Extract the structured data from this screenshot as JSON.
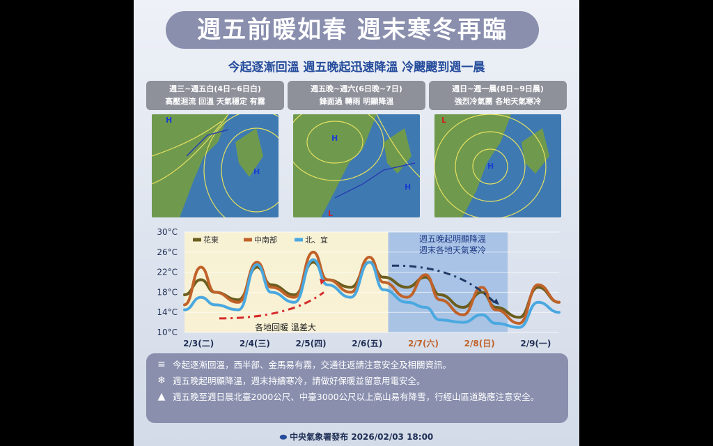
{
  "title": "週五前暖如春  週末寒冬再臨",
  "subtitle": "今起逐漸回溫 週五晚起迅速降溫 冷颼颼到週一晨",
  "panels": [
    {
      "line1": "週三~週五白(4日~6日白)",
      "line2": "高壓迴流 回溫 天氣穩定 有霧"
    },
    {
      "line1": "週五晚~週六(6日晚~7日)",
      "line2": "鋒面過 轉雨 明顯降溫"
    },
    {
      "line1": "週日~週一晨(8日~9日晨)",
      "line2": "強烈冷氣團 各地天氣寒冷"
    }
  ],
  "chart_data": {
    "type": "line",
    "ylim": [
      10,
      30
    ],
    "yticks": [
      "10°C",
      "14°C",
      "18°C",
      "22°C",
      "26°C",
      "30°C"
    ],
    "ytick_values": [
      10,
      14,
      18,
      22,
      26,
      30
    ],
    "xlim": [
      "2/3 06:00",
      "2/9 22:00"
    ],
    "xticks": [
      {
        "label": "2/3(二)",
        "color": "#1f2f55"
      },
      {
        "label": "2/4(三)",
        "color": "#1f2f55"
      },
      {
        "label": "2/5(四)",
        "color": "#1f2f55"
      },
      {
        "label": "2/6(五)",
        "color": "#1f2f55"
      },
      {
        "label": "2/7(六)",
        "color": "#c0622a"
      },
      {
        "label": "2/8(日)",
        "color": "#c0622a"
      },
      {
        "label": "2/9(一)",
        "color": "#1f2f55"
      }
    ],
    "x": [
      "2/3 06:00",
      "2/3 13:00",
      "2/3 19:00",
      "2/4 05:00",
      "2/4 13:00",
      "2/4 19:00",
      "2/5 05:00",
      "2/5 13:00",
      "2/5 19:00",
      "2/6 05:00",
      "2/6 13:00",
      "2/6 19:00",
      "2/7 05:00",
      "2/7 13:00",
      "2/7 19:00",
      "2/8 05:00",
      "2/8 13:00",
      "2/8 19:00",
      "2/9 05:00",
      "2/9 13:00",
      "2/9 22:00"
    ],
    "series": [
      {
        "name": "花東",
        "color": "#6b5e1e",
        "values": [
          17.5,
          20.5,
          18,
          16.5,
          23,
          19.5,
          17.5,
          24,
          20.5,
          19,
          24,
          21,
          19,
          21,
          17.5,
          15,
          18,
          15,
          13,
          19,
          16
        ]
      },
      {
        "name": "中南部",
        "color": "#c0622a",
        "values": [
          15.5,
          23,
          18,
          16,
          24,
          19,
          17,
          26,
          20.5,
          18,
          25,
          20,
          17,
          21.5,
          16.5,
          13.5,
          19,
          14.5,
          11.8,
          19.5,
          16
        ]
      },
      {
        "name": "北、宜",
        "color": "#4aa8e0",
        "values": [
          14.5,
          17,
          15.5,
          14.5,
          23.5,
          18,
          16,
          24.5,
          19.5,
          17,
          24,
          18.5,
          16,
          15,
          12.5,
          12,
          13.5,
          11.8,
          11,
          16,
          14
        ]
      }
    ],
    "grid": true,
    "legend": "top-left",
    "annotations": {
      "warm": "各地回暖 溫差大",
      "cold_line1": "週五晚起明顯降溫",
      "cold_line2": "週末各地天氣寒冷"
    },
    "regions": {
      "warm_color": "#fbf3d2",
      "cold_color": "#9fbde3"
    }
  },
  "notes": [
    {
      "icon": "fog-icon",
      "text": "今起逐漸回溫，西半部、金馬易有霧，交通往返請注意安全及相關資訊。"
    },
    {
      "icon": "snowflake-icon",
      "text": "週五晚起明顯降溫，週末持續寒冷，請做好保暖並留意用電安全。"
    },
    {
      "icon": "mountain-icon",
      "text": "週五晚至週日晨北臺2000公尺、中臺3000公尺以上高山易有降雪，行經山區道路應注意安全。"
    }
  ],
  "footer": "中央氣象署發布 2026/02/03 18:00"
}
